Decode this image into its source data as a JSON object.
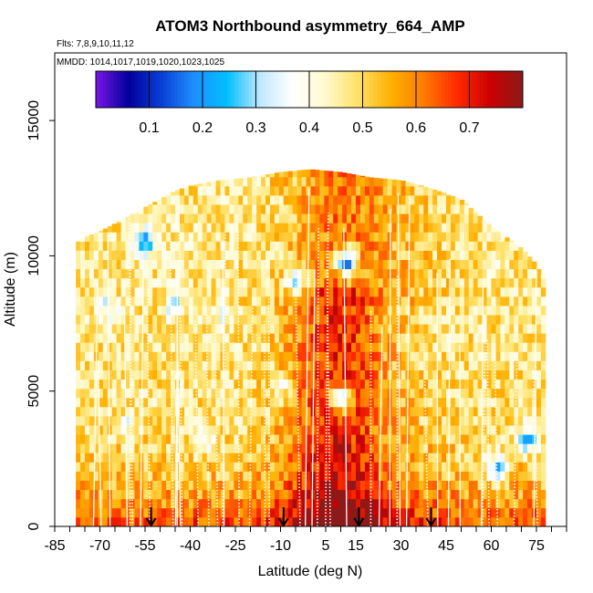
{
  "chart_data": {
    "type": "heatmap",
    "title": "ATOM3 Northbound asymmetry_664_AMP",
    "subtitle_flights": "Flts: 7,8,9,10,11,12",
    "subtitle_dates": "MMDD: 1014,1017,1019,1020,1023,1025",
    "xlabel": "Latitude (deg N)",
    "ylabel": "Altitude (m)",
    "xlim": [
      -85,
      85
    ],
    "ylim": [
      0,
      17500
    ],
    "x_tick_labels": [
      "-85",
      "-70",
      "-55",
      "-40",
      "-25",
      "-10",
      "5",
      "15",
      "30",
      "45",
      "60",
      "75"
    ],
    "y_tick_labels": [
      "0",
      "5000",
      "10000",
      "15000"
    ],
    "colorbar": {
      "range": [
        0.0,
        0.8
      ],
      "tick_labels": [
        "0.1",
        "0.2",
        "0.3",
        "0.4",
        "0.5",
        "0.6",
        "0.7"
      ],
      "colors": [
        "#7a16e6",
        "#00009c",
        "#0a3fd6",
        "#1e90ff",
        "#00bfff",
        "#bfe9ff",
        "#ffffff",
        "#fffacd",
        "#ffe066",
        "#ffb000",
        "#ff7a00",
        "#ff2a00",
        "#cc0000",
        "#8b1a1a"
      ]
    },
    "arrows_latitude": [
      -53,
      -9,
      16,
      40
    ],
    "grid": false,
    "envelope": [
      [
        -78,
        10500
      ],
      [
        -75,
        10700
      ],
      [
        -70,
        10900
      ],
      [
        -65,
        11200
      ],
      [
        -60,
        11500
      ],
      [
        -55,
        11800
      ],
      [
        -50,
        12100
      ],
      [
        -45,
        12400
      ],
      [
        -40,
        12600
      ],
      [
        -30,
        12800
      ],
      [
        -20,
        12900
      ],
      [
        -10,
        13100
      ],
      [
        0,
        13200
      ],
      [
        10,
        13100
      ],
      [
        20,
        12900
      ],
      [
        30,
        12800
      ],
      [
        40,
        12500
      ],
      [
        50,
        12100
      ],
      [
        55,
        11600
      ],
      [
        60,
        11100
      ],
      [
        65,
        10700
      ],
      [
        70,
        10300
      ],
      [
        75,
        9700
      ],
      [
        78,
        9200
      ]
    ],
    "value_model": {
      "base": 0.47,
      "equator_peak": 0.68,
      "surface_boost": 0.2,
      "low_spots": [
        [
          -68,
          8000,
          0.33
        ],
        [
          -55,
          10500,
          0.2
        ],
        [
          -45,
          8200,
          0.35
        ],
        [
          -30,
          7800,
          0.38
        ],
        [
          -10,
          5200,
          0.38
        ],
        [
          -5,
          9000,
          0.33
        ],
        [
          -60,
          3800,
          0.38
        ],
        [
          -35,
          3200,
          0.38
        ],
        [
          10,
          4700,
          0.3
        ],
        [
          12,
          9800,
          0.2
        ],
        [
          62,
          2200,
          0.25
        ],
        [
          72,
          3200,
          0.25
        ],
        [
          60,
          9500,
          0.4
        ]
      ]
    }
  }
}
